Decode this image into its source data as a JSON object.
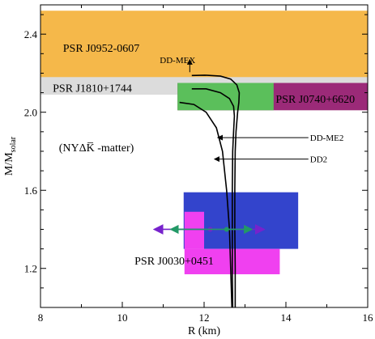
{
  "chart_data": {
    "type": "line",
    "xlabel": "R (km)",
    "ylabel": "M/M",
    "ylabel_sub": "solar",
    "xlim": [
      8,
      16
    ],
    "ylim": [
      1.0,
      2.55
    ],
    "xticks": [
      8,
      10,
      12,
      14,
      16
    ],
    "yticks": [
      1.2,
      1.6,
      2.0,
      2.4
    ],
    "annotation": {
      "text": "(NYΔK̅ -matter)",
      "x": 8.45,
      "y": 1.82
    },
    "regions": [
      {
        "label": "PSR J0952-0607",
        "xmin": 8,
        "xmax": 16,
        "ymin": 2.17,
        "ymax": 2.52,
        "color": "#f5b84a",
        "label_x": 8.55,
        "label_y": 2.33
      },
      {
        "label": "PSR J1810+1744",
        "xmin": 8,
        "xmax": 16,
        "ymin": 2.09,
        "ymax": 2.18,
        "color": "#dcdcdc",
        "label_x": 8.3,
        "label_y": 2.125
      },
      {
        "label": "PSR J0740+6620",
        "xmin": 11.35,
        "xmax": 16,
        "ymin": 2.01,
        "ymax": 2.15,
        "color": "#9b2a78",
        "label_x": 13.75,
        "label_y": 2.07
      },
      {
        "label": "",
        "xmin": 11.35,
        "xmax": 13.7,
        "ymin": 2.01,
        "ymax": 2.15,
        "color": "#5bbf5b"
      },
      {
        "label": "",
        "xmin": 11.5,
        "xmax": 14.3,
        "ymin": 1.3,
        "ymax": 1.59,
        "color": "#3344cc"
      },
      {
        "label": "PSR J0030+0451",
        "xmin": 11.52,
        "xmax": 13.85,
        "ymin": 1.17,
        "ymax": 1.3,
        "color": "#f040f0",
        "label_x": 10.3,
        "label_y": 1.24
      },
      {
        "label": "",
        "xmin": 11.52,
        "xmax": 12.0,
        "ymin": 1.3,
        "ymax": 1.49,
        "color": "#f040f0"
      }
    ],
    "series": [
      {
        "name": "DD-MEX",
        "x": [
          12.76,
          12.76,
          12.75,
          12.75,
          12.76,
          12.78,
          12.82,
          12.85,
          12.86,
          12.8,
          12.65,
          12.4,
          12.02,
          11.7
        ],
        "y": [
          1.0,
          1.2,
          1.4,
          1.6,
          1.8,
          1.9,
          2.0,
          2.05,
          2.1,
          2.14,
          2.17,
          2.185,
          2.19,
          2.188
        ],
        "label_text": "DD-MEX",
        "label_x": 11.55,
        "label_y": 2.26
      },
      {
        "name": "DD-ME2",
        "x": [
          12.7,
          12.69,
          12.69,
          12.69,
          12.7,
          12.72,
          12.74,
          12.72,
          12.62,
          12.4,
          12.05,
          11.7
        ],
        "y": [
          1.0,
          1.2,
          1.4,
          1.6,
          1.8,
          1.9,
          1.98,
          2.03,
          2.07,
          2.1,
          2.12,
          2.12
        ],
        "label_text": "DD-ME2",
        "label_x": 14.55,
        "label_y": 1.87
      },
      {
        "name": "DD2",
        "x": [
          12.68,
          12.65,
          12.62,
          12.55,
          12.45,
          12.3,
          12.05,
          11.75,
          11.4
        ],
        "y": [
          1.0,
          1.2,
          1.4,
          1.6,
          1.8,
          1.92,
          2.0,
          2.04,
          2.05
        ],
        "label_text": "DD2",
        "label_x": 14.55,
        "label_y": 1.76
      }
    ],
    "pointers": [
      {
        "from_x": 14.55,
        "from_y": 1.87,
        "to_x": 12.33,
        "to_y": 1.87
      },
      {
        "from_x": 14.55,
        "from_y": 1.76,
        "to_x": 12.25,
        "to_y": 1.76
      },
      {
        "from_x": 11.65,
        "from_y": 2.205,
        "to_x": 11.65,
        "to_y": 2.27
      }
    ],
    "error_bars": [
      {
        "center": 12.15,
        "low": 10.8,
        "high": 13.45,
        "y": 1.4,
        "color": "#7722cc"
      },
      {
        "center": 12.55,
        "low": 11.2,
        "high": 13.15,
        "y": 1.4,
        "color": "#229966"
      }
    ]
  }
}
